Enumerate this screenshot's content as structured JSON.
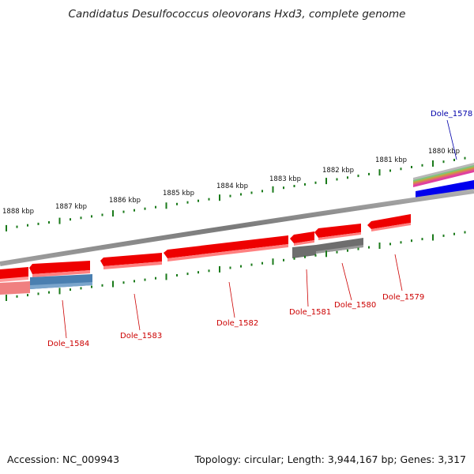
{
  "title": "Candidatus Desulfococcus oleovorans Hxd3, complete genome",
  "footer": {
    "accession": "Accession: NC_009943",
    "summary": "Topology: circular; Length: 3,944,167 bp; Genes: 3,317"
  },
  "colors": {
    "backbone": "#8a8a8a",
    "gene_forward": "#ee0000",
    "gene_reverse_strand": "#ff8080",
    "cds_protein": "#4a7fb0",
    "pseudo_gray": "#6e6e6e",
    "ticks": "#1a7a1a",
    "label_red": "#cc0000",
    "label_blue": "#0000aa",
    "feature_blue": "#0000ee"
  },
  "scale_labels": [
    "1888 kbp",
    "1887 kbp",
    "1886 kbp",
    "1885 kbp",
    "1884 kbp",
    "1883 kbp",
    "1882 kbp",
    "1881 kbp",
    "1880 kbp"
  ],
  "gene_labels": [
    {
      "name": "Dole_1584",
      "color": "#cc0000"
    },
    {
      "name": "Dole_1583",
      "color": "#cc0000"
    },
    {
      "name": "Dole_1582",
      "color": "#cc0000"
    },
    {
      "name": "Dole_1581",
      "color": "#cc0000"
    },
    {
      "name": "Dole_1580",
      "color": "#cc0000"
    },
    {
      "name": "Dole_1579",
      "color": "#cc0000"
    },
    {
      "name": "Dole_1578",
      "color": "#0000aa"
    }
  ]
}
